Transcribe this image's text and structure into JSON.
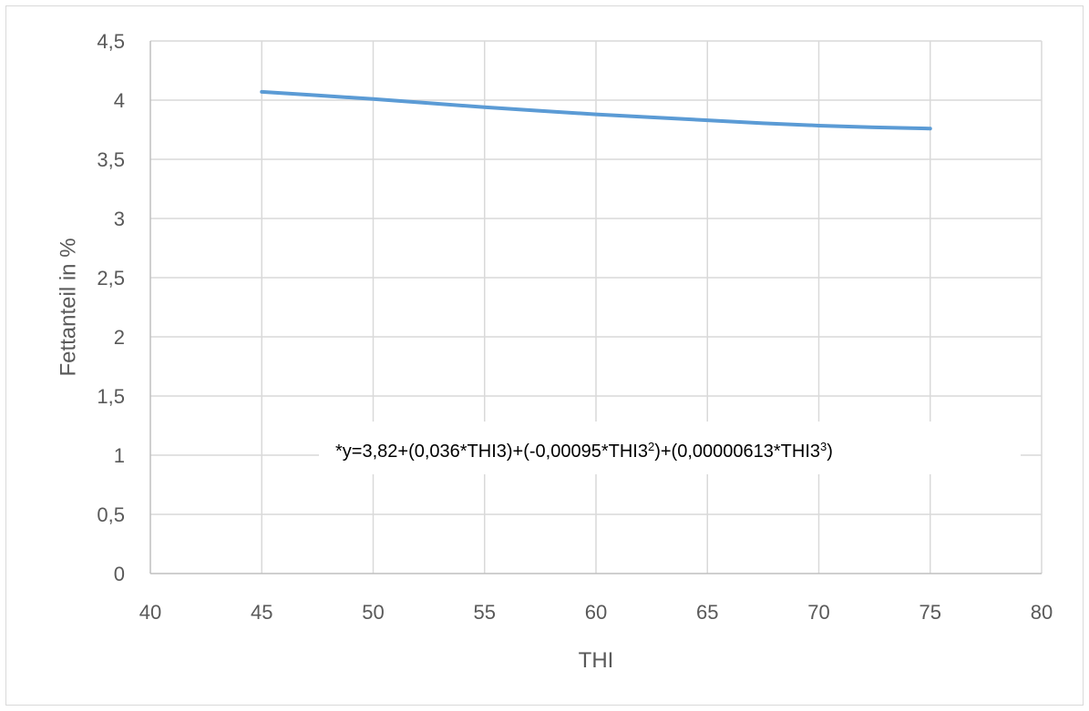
{
  "chart_data": {
    "type": "line",
    "title": "",
    "xlabel": "THI",
    "ylabel": "Fettanteil in %",
    "xlim": [
      40,
      80
    ],
    "ylim": [
      0,
      4.5
    ],
    "x_ticks": [
      40,
      45,
      50,
      55,
      60,
      65,
      70,
      75,
      80
    ],
    "y_ticks": [
      0,
      0.5,
      1,
      1.5,
      2,
      2.5,
      3,
      3.5,
      4,
      4.5
    ],
    "x_tick_labels": [
      "40",
      "45",
      "50",
      "55",
      "60",
      "65",
      "70",
      "75",
      "80"
    ],
    "y_tick_labels": [
      "0",
      "0,5",
      "1",
      "1,5",
      "2",
      "2,5",
      "3",
      "3,5",
      "4",
      "4,5"
    ],
    "grid": true,
    "legend": "none",
    "series": [
      {
        "color": "#5b9bd5",
        "x": [
          45,
          47.5,
          50,
          52.5,
          55,
          57.5,
          60,
          62.5,
          65,
          67.5,
          70,
          72.5,
          75
        ],
        "y": [
          4.07,
          4.04,
          4.01,
          3.975,
          3.94,
          3.91,
          3.88,
          3.855,
          3.83,
          3.805,
          3.785,
          3.77,
          3.76
        ]
      }
    ],
    "annotation": {
      "prefix": "*y=3,82+(0,036*THI3)+(-0,00095*THI3",
      "sup1": "2",
      "middle": ")+(0,00000613*THI3",
      "sup2": "3",
      "suffix": ")"
    }
  }
}
